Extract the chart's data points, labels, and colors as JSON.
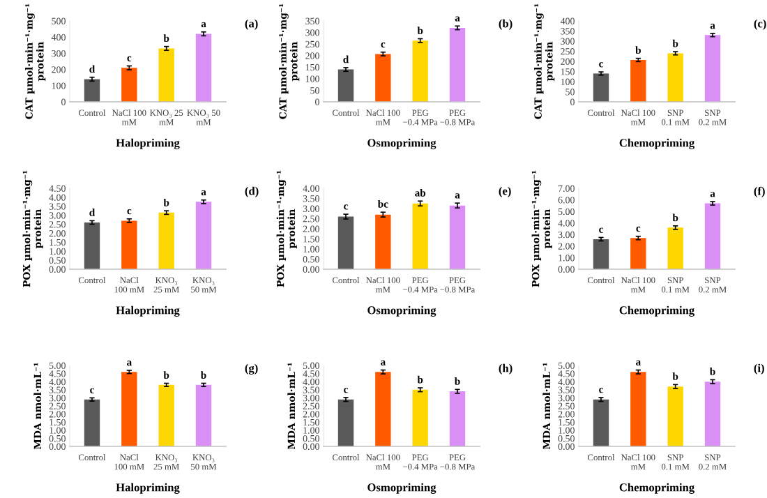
{
  "chart_data": [
    {
      "type": "bar",
      "annotations": [
        "(a)"
      ],
      "xlabel": "Halopriming",
      "ylabel": "CAT µmol·min⁻¹·mg⁻¹\nprotein",
      "categories": [
        "Control",
        "NaCl 100\nmM",
        "KNO₃ 25\nmM",
        "KNO₃ 50\nmM"
      ],
      "values": [
        140,
        210,
        330,
        420
      ],
      "errors": [
        12,
        12,
        12,
        12
      ],
      "value_labels": [
        "d",
        "c",
        "b",
        "a"
      ],
      "colors": [
        "#595959",
        "#ff5a00",
        "#ffd700",
        "#d98ff5"
      ],
      "ylim": [
        0,
        500
      ],
      "yticks": [
        0,
        100,
        200,
        300,
        400,
        500
      ],
      "grid": false
    },
    {
      "type": "bar",
      "annotations": [
        "(b)"
      ],
      "xlabel": "Osmopriming",
      "ylabel": "CAT µmol·min⁻¹·mg⁻¹\nprotein",
      "categories": [
        "Control",
        "NaCl 100\nmM",
        "PEG\n−0.4 MPa",
        "PEG\n−0.8 MPa"
      ],
      "values": [
        140,
        207,
        265,
        320
      ],
      "errors": [
        8,
        8,
        8,
        8
      ],
      "value_labels": [
        "d",
        "c",
        "b",
        "a"
      ],
      "colors": [
        "#595959",
        "#ff5a00",
        "#ffd700",
        "#d98ff5"
      ],
      "ylim": [
        0,
        350
      ],
      "yticks": [
        0,
        50,
        100,
        150,
        200,
        250,
        300,
        350
      ],
      "grid": false
    },
    {
      "type": "bar",
      "annotations": [
        "(c)"
      ],
      "xlabel": "Chemopriming",
      "ylabel": "CAT µmol·min⁻¹·mg⁻¹\nprotein",
      "categories": [
        "Control",
        "NaCl 100\nmM",
        "SNP\n0.1 mM",
        "SNP\n0.2 mM"
      ],
      "values": [
        140,
        207,
        240,
        330
      ],
      "errors": [
        8,
        8,
        8,
        8
      ],
      "value_labels": [
        "c",
        "b",
        "b",
        "a"
      ],
      "colors": [
        "#595959",
        "#ff5a00",
        "#ffd700",
        "#d98ff5"
      ],
      "ylim": [
        0,
        400
      ],
      "yticks": [
        0,
        50,
        100,
        150,
        200,
        250,
        300,
        350,
        400
      ],
      "grid": false
    },
    {
      "type": "bar",
      "annotations": [
        "(d)"
      ],
      "xlabel": "Halopriming",
      "ylabel": "POX µmol·min⁻¹·mg⁻¹\nprotein",
      "categories": [
        "Control",
        "NaCl\n100 mM",
        "KNO₃\n25 mM",
        "KNO₃\n50 mM"
      ],
      "values": [
        2.6,
        2.7,
        3.15,
        3.75
      ],
      "errors": [
        0.1,
        0.1,
        0.1,
        0.1
      ],
      "value_labels": [
        "d",
        "c",
        "b",
        "a"
      ],
      "colors": [
        "#595959",
        "#ff5a00",
        "#ffd700",
        "#d98ff5"
      ],
      "ylim": [
        0,
        4.5
      ],
      "yticks": [
        {
          "value": 0,
          "label": "0.00"
        },
        {
          "value": 0.5,
          "label": "0.50"
        },
        {
          "value": 1,
          "label": "1.00"
        },
        {
          "value": 1.5,
          "label": "1.50"
        },
        {
          "value": 2,
          "label": "2.00"
        },
        {
          "value": 2.5,
          "label": "2.50"
        },
        {
          "value": 3,
          "label": "3.00"
        },
        {
          "value": 3.5,
          "label": "3.50"
        },
        {
          "value": 4,
          "label": "4.00"
        },
        {
          "value": 4.5,
          "label": "4.50"
        }
      ],
      "grid": false
    },
    {
      "type": "bar",
      "annotations": [
        "(e)"
      ],
      "xlabel": "Osmopriming",
      "ylabel": "POX µmol·min⁻¹·mg⁻¹\nprotein",
      "categories": [
        "Control",
        "NaCl 100\nmM",
        "PEG\n−0.4 MPa",
        "PEG\n−0.8 MPa"
      ],
      "values": [
        2.6,
        2.7,
        3.25,
        3.15
      ],
      "errors": [
        0.12,
        0.12,
        0.12,
        0.12
      ],
      "value_labels": [
        "c",
        "bc",
        "ab",
        "a"
      ],
      "colors": [
        "#595959",
        "#ff5a00",
        "#ffd700",
        "#d98ff5"
      ],
      "ylim": [
        0,
        4
      ],
      "yticks": [
        {
          "value": 0,
          "label": "0.00"
        },
        {
          "value": 0.5,
          "label": "0.50"
        },
        {
          "value": 1,
          "label": "1.00"
        },
        {
          "value": 1.5,
          "label": "1.50"
        },
        {
          "value": 2,
          "label": "2.00"
        },
        {
          "value": 2.5,
          "label": "2.50"
        },
        {
          "value": 3,
          "label": "3.00"
        },
        {
          "value": 3.5,
          "label": "3.50"
        },
        {
          "value": 4,
          "label": "4.00"
        }
      ],
      "grid": false
    },
    {
      "type": "bar",
      "annotations": [
        "(f)"
      ],
      "xlabel": "Chemopriming",
      "ylabel": "POX µmol·min⁻¹·mg⁻¹\nprotein",
      "categories": [
        "Control",
        "NaCl 100\nmM",
        "SNP\n0.1 mM",
        "SNP\n0.2 mM"
      ],
      "values": [
        2.6,
        2.7,
        3.6,
        5.7
      ],
      "errors": [
        0.15,
        0.15,
        0.15,
        0.15
      ],
      "value_labels": [
        "c",
        "c",
        "b",
        "a"
      ],
      "colors": [
        "#595959",
        "#ff5a00",
        "#ffd700",
        "#d98ff5"
      ],
      "ylim": [
        0,
        7
      ],
      "yticks": [
        {
          "value": 0,
          "label": "0.00"
        },
        {
          "value": 1,
          "label": "1.00"
        },
        {
          "value": 2,
          "label": "2.00"
        },
        {
          "value": 3,
          "label": "3.00"
        },
        {
          "value": 4,
          "label": "4.00"
        },
        {
          "value": 5,
          "label": "5.00"
        },
        {
          "value": 6,
          "label": "6.00"
        },
        {
          "value": 7,
          "label": "7.00"
        }
      ],
      "grid": false
    },
    {
      "type": "bar",
      "annotations": [
        "(g)"
      ],
      "xlabel": "Halopriming",
      "ylabel": "MDA nmol·mL⁻¹",
      "categories": [
        "Control",
        "NaCl\n100 mM",
        "KNO₃\n25 mM",
        "KNO₃\n50 mM"
      ],
      "values": [
        2.9,
        4.6,
        3.8,
        3.8
      ],
      "errors": [
        0.1,
        0.1,
        0.1,
        0.1
      ],
      "value_labels": [
        "c",
        "a",
        "b",
        "b"
      ],
      "colors": [
        "#595959",
        "#ff5a00",
        "#ffd700",
        "#d98ff5"
      ],
      "ylim": [
        0,
        5
      ],
      "yticks": [
        {
          "value": 0,
          "label": "0.00"
        },
        {
          "value": 0.5,
          "label": "0.50"
        },
        {
          "value": 1,
          "label": "1.00"
        },
        {
          "value": 1.5,
          "label": "1.50"
        },
        {
          "value": 2,
          "label": "2.00"
        },
        {
          "value": 2.5,
          "label": "2.50"
        },
        {
          "value": 3,
          "label": "3.00"
        },
        {
          "value": 3.5,
          "label": "3.50"
        },
        {
          "value": 4,
          "label": "4.00"
        },
        {
          "value": 4.5,
          "label": "4.50"
        },
        {
          "value": 5,
          "label": "5.00"
        }
      ],
      "grid": false
    },
    {
      "type": "bar",
      "annotations": [
        "(h)"
      ],
      "xlabel": "Osmopriming",
      "ylabel": "MDA nmol·mL⁻¹",
      "categories": [
        "Control",
        "NaCl 100\nmM",
        "PEG\n−0.4 MPa",
        "PEG\n−0.8 MPa"
      ],
      "values": [
        2.9,
        4.6,
        3.5,
        3.4
      ],
      "errors": [
        0.12,
        0.12,
        0.12,
        0.12
      ],
      "value_labels": [
        "c",
        "a",
        "b",
        "b"
      ],
      "colors": [
        "#595959",
        "#ff5a00",
        "#ffd700",
        "#d98ff5"
      ],
      "ylim": [
        0,
        5
      ],
      "yticks": [
        {
          "value": 0,
          "label": "0.00"
        },
        {
          "value": 0.5,
          "label": "0.50"
        },
        {
          "value": 1,
          "label": "1.00"
        },
        {
          "value": 1.5,
          "label": "1.50"
        },
        {
          "value": 2,
          "label": "2.00"
        },
        {
          "value": 2.5,
          "label": "2.50"
        },
        {
          "value": 3,
          "label": "3.00"
        },
        {
          "value": 3.5,
          "label": "3.50"
        },
        {
          "value": 4,
          "label": "4.00"
        },
        {
          "value": 4.5,
          "label": "4.50"
        },
        {
          "value": 5,
          "label": "5.00"
        }
      ],
      "grid": false
    },
    {
      "type": "bar",
      "annotations": [
        "(i)"
      ],
      "xlabel": "Chemopriming",
      "ylabel": "MDA nmol·mL⁻¹",
      "categories": [
        "Control",
        "NaCl 100\nmM",
        "SNP\n0.1 mM",
        "SNP\n0.2 mM"
      ],
      "values": [
        2.9,
        4.6,
        3.7,
        4.0
      ],
      "errors": [
        0.12,
        0.12,
        0.12,
        0.12
      ],
      "value_labels": [
        "c",
        "a",
        "b",
        "b"
      ],
      "colors": [
        "#595959",
        "#ff5a00",
        "#ffd700",
        "#d98ff5"
      ],
      "ylim": [
        0,
        5
      ],
      "yticks": [
        {
          "value": 0,
          "label": "0.00"
        },
        {
          "value": 0.5,
          "label": "0.50"
        },
        {
          "value": 1,
          "label": "1.00"
        },
        {
          "value": 1.5,
          "label": "1.50"
        },
        {
          "value": 2,
          "label": "2.00"
        },
        {
          "value": 2.5,
          "label": "2.50"
        },
        {
          "value": 3,
          "label": "3.00"
        },
        {
          "value": 3.5,
          "label": "3.50"
        },
        {
          "value": 4,
          "label": "4.00"
        },
        {
          "value": 4.5,
          "label": "4.50"
        },
        {
          "value": 5,
          "label": "5.00"
        }
      ],
      "grid": false
    }
  ]
}
